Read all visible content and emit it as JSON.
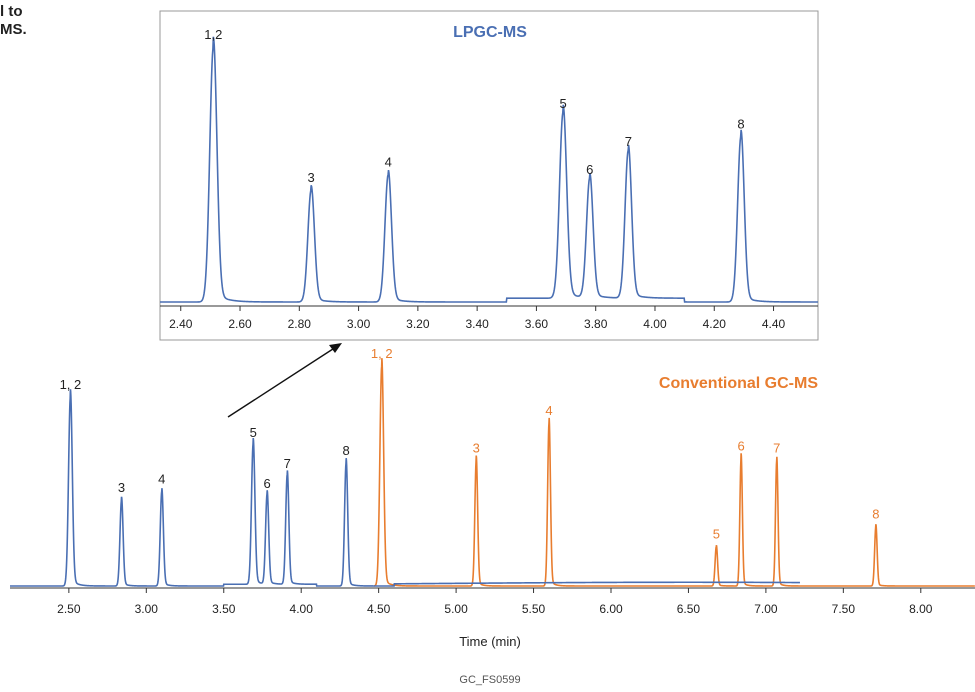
{
  "header_fragment": {
    "line1": "l to",
    "line2": "MS."
  },
  "colors": {
    "lpgc": "#4a6fb3",
    "conventional": "#e87d2f",
    "axis": "#333333",
    "inset_border": "#999999"
  },
  "chart_data": [
    {
      "id": "inset",
      "type": "line",
      "title": "LPGC-MS",
      "xlabel": "",
      "ylabel": "",
      "xlim": [
        2.33,
        4.55
      ],
      "ylim": [
        0,
        100
      ],
      "xticks": [
        "2.40",
        "2.60",
        "2.80",
        "3.00",
        "3.20",
        "3.40",
        "3.60",
        "3.80",
        "4.00",
        "4.20",
        "4.40"
      ],
      "series": [
        {
          "color": "#4a6fb3",
          "peaks": [
            {
              "label": "1,2",
              "rt": 2.51,
              "height": 100,
              "width": 0.012
            },
            {
              "label": "3",
              "rt": 2.84,
              "height": 44,
              "width": 0.011
            },
            {
              "label": "4",
              "rt": 3.1,
              "height": 50,
              "width": 0.011
            },
            {
              "label": "5",
              "rt": 3.69,
              "height": 73,
              "width": 0.012
            },
            {
              "label": "6",
              "rt": 3.78,
              "height": 47,
              "width": 0.011
            },
            {
              "label": "7",
              "rt": 3.91,
              "height": 58,
              "width": 0.011
            },
            {
              "label": "8",
              "rt": 4.29,
              "height": 65,
              "width": 0.011
            }
          ]
        }
      ]
    },
    {
      "id": "main",
      "type": "line",
      "title": "",
      "xlabel": "Time (min)",
      "ylabel": "",
      "xlim": [
        2.12,
        8.35
      ],
      "ylim": [
        0,
        100
      ],
      "xticks": [
        "2.50",
        "3.00",
        "3.50",
        "4.00",
        "4.50",
        "5.00",
        "5.50",
        "6.00",
        "6.50",
        "7.00",
        "7.50",
        "8.00"
      ],
      "series": [
        {
          "name": "Conventional GC-MS",
          "color": "#e87d2f",
          "peaks": [
            {
              "label": "1, 2",
              "rt": 4.52,
              "height": 100,
              "width": 0.012
            },
            {
              "label": "3",
              "rt": 5.13,
              "height": 57,
              "width": 0.009
            },
            {
              "label": "4",
              "rt": 5.6,
              "height": 74,
              "width": 0.009
            },
            {
              "label": "5",
              "rt": 6.68,
              "height": 18,
              "width": 0.008
            },
            {
              "label": "6",
              "rt": 6.84,
              "height": 58,
              "width": 0.008
            },
            {
              "label": "7",
              "rt": 7.07,
              "height": 57,
              "width": 0.008
            },
            {
              "label": "8",
              "rt": 7.71,
              "height": 27,
              "width": 0.008
            }
          ]
        },
        {
          "name": "",
          "color": "#4a6fb3",
          "peaks": [
            {
              "label": "1, 2",
              "rt": 2.51,
              "height": 86,
              "width": 0.012
            },
            {
              "label": "3",
              "rt": 2.84,
              "height": 39,
              "width": 0.01
            },
            {
              "label": "4",
              "rt": 3.1,
              "height": 43,
              "width": 0.01
            },
            {
              "label": "5",
              "rt": 3.69,
              "height": 64,
              "width": 0.011
            },
            {
              "label": "6",
              "rt": 3.78,
              "height": 41,
              "width": 0.01
            },
            {
              "label": "7",
              "rt": 3.91,
              "height": 50,
              "width": 0.01
            },
            {
              "label": "8",
              "rt": 4.29,
              "height": 56,
              "width": 0.01
            }
          ]
        }
      ]
    }
  ],
  "footer_code": "GC_FS0599"
}
